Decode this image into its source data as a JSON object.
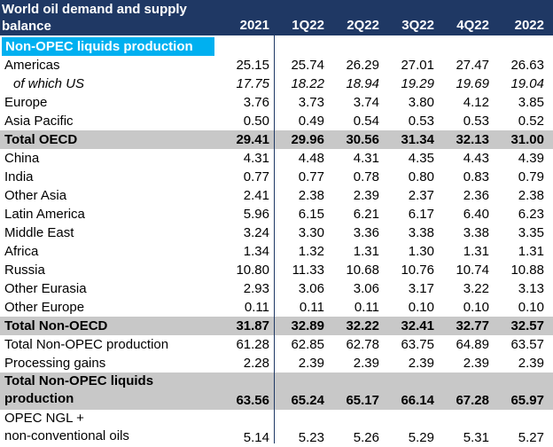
{
  "header": {
    "title": "World oil demand and supply balance",
    "columns": [
      "2021",
      "1Q22",
      "2Q22",
      "3Q22",
      "4Q22",
      "2022"
    ]
  },
  "section_title": "Non-OPEC liquids production",
  "rows": [
    {
      "label": "Americas",
      "values": [
        "25.15",
        "25.74",
        "26.29",
        "27.01",
        "27.47",
        "26.63"
      ]
    },
    {
      "label": "of which US",
      "values": [
        "17.75",
        "18.22",
        "18.94",
        "19.29",
        "19.69",
        "19.04"
      ],
      "style": "italic"
    },
    {
      "label": "Europe",
      "values": [
        "3.76",
        "3.73",
        "3.74",
        "3.80",
        "4.12",
        "3.85"
      ]
    },
    {
      "label": "Asia Pacific",
      "values": [
        "0.50",
        "0.49",
        "0.54",
        "0.53",
        "0.53",
        "0.52"
      ]
    },
    {
      "label": "Total OECD",
      "values": [
        "29.41",
        "29.96",
        "30.56",
        "31.34",
        "32.13",
        "31.00"
      ],
      "style": "total"
    },
    {
      "label": "China",
      "values": [
        "4.31",
        "4.48",
        "4.31",
        "4.35",
        "4.43",
        "4.39"
      ]
    },
    {
      "label": "India",
      "values": [
        "0.77",
        "0.77",
        "0.78",
        "0.80",
        "0.83",
        "0.79"
      ]
    },
    {
      "label": "Other Asia",
      "values": [
        "2.41",
        "2.38",
        "2.39",
        "2.37",
        "2.36",
        "2.38"
      ]
    },
    {
      "label": "Latin America",
      "values": [
        "5.96",
        "6.15",
        "6.21",
        "6.17",
        "6.40",
        "6.23"
      ]
    },
    {
      "label": "Middle East",
      "values": [
        "3.24",
        "3.30",
        "3.36",
        "3.38",
        "3.38",
        "3.35"
      ]
    },
    {
      "label": "Africa",
      "values": [
        "1.34",
        "1.32",
        "1.31",
        "1.30",
        "1.31",
        "1.31"
      ]
    },
    {
      "label": "Russia",
      "values": [
        "10.80",
        "11.33",
        "10.68",
        "10.76",
        "10.74",
        "10.88"
      ]
    },
    {
      "label": "Other Eurasia",
      "values": [
        "2.93",
        "3.06",
        "3.06",
        "3.17",
        "3.22",
        "3.13"
      ]
    },
    {
      "label": "Other Europe",
      "values": [
        "0.11",
        "0.11",
        "0.11",
        "0.10",
        "0.10",
        "0.10"
      ]
    },
    {
      "label": "Total Non-OECD",
      "values": [
        "31.87",
        "32.89",
        "32.22",
        "32.41",
        "32.77",
        "32.57"
      ],
      "style": "total"
    },
    {
      "label": "Total Non-OPEC production",
      "values": [
        "61.28",
        "62.85",
        "62.78",
        "63.75",
        "64.89",
        "63.57"
      ]
    },
    {
      "label": "Processing gains",
      "values": [
        "2.28",
        "2.39",
        "2.39",
        "2.39",
        "2.39",
        "2.39"
      ]
    },
    {
      "label": "Total Non-OPEC liquids production",
      "label_lines": [
        "Total Non-OPEC liquids",
        "production"
      ],
      "values": [
        "63.56",
        "65.24",
        "65.17",
        "66.14",
        "67.28",
        "65.97"
      ],
      "style": "total-tall"
    },
    {
      "label": "OPEC NGL + non-conventional oils",
      "label_lines": [
        "OPEC NGL +",
        "non-conventional oils"
      ],
      "values": [
        "5.14",
        "5.23",
        "5.26",
        "5.29",
        "5.31",
        "5.27"
      ],
      "style": "tall"
    }
  ]
}
